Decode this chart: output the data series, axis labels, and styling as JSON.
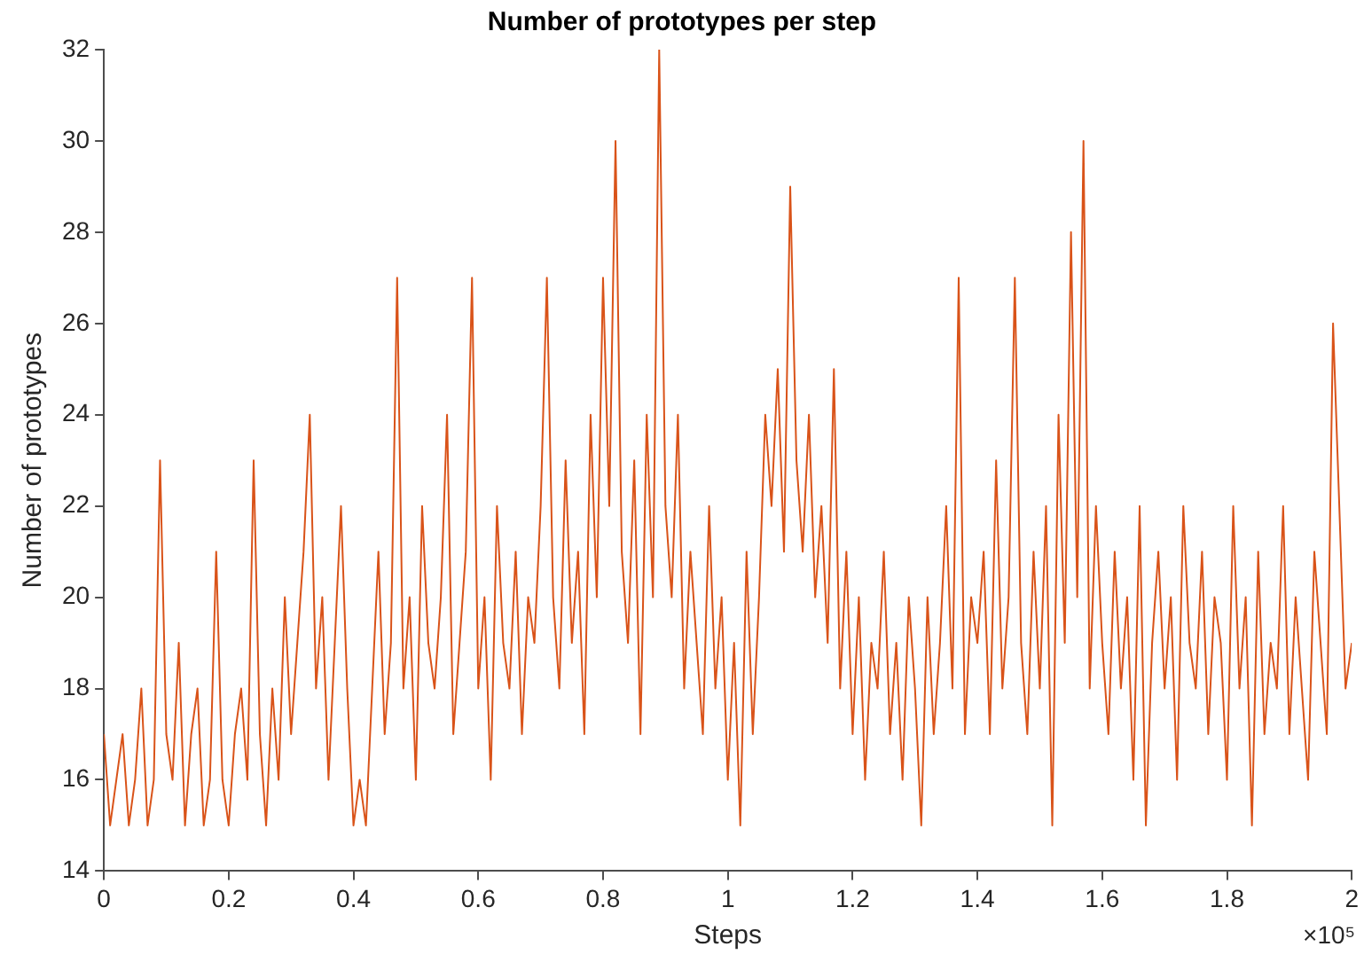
{
  "chart_data": {
    "type": "line",
    "title": "Number of prototypes per step",
    "xlabel": "Steps",
    "ylabel": "Number of prototypes",
    "annotations": [
      "×10⁵"
    ],
    "x": [
      0,
      0.01,
      0.02,
      0.03,
      0.04,
      0.05,
      0.06,
      0.07,
      0.08,
      0.09,
      0.1,
      0.11,
      0.12,
      0.13,
      0.14,
      0.15,
      0.16,
      0.17,
      0.18,
      0.19,
      0.2,
      0.21,
      0.22,
      0.23,
      0.24,
      0.25,
      0.26,
      0.27,
      0.28,
      0.29,
      0.3,
      0.31,
      0.32,
      0.33,
      0.34,
      0.35,
      0.36,
      0.37,
      0.38,
      0.39,
      0.4,
      0.41,
      0.42,
      0.43,
      0.44,
      0.45,
      0.46,
      0.47,
      0.48,
      0.49,
      0.5,
      0.51,
      0.52,
      0.53,
      0.54,
      0.55,
      0.56,
      0.57,
      0.58,
      0.59,
      0.6,
      0.61,
      0.62,
      0.63,
      0.64,
      0.65,
      0.66,
      0.67,
      0.68,
      0.69,
      0.7,
      0.71,
      0.72,
      0.73,
      0.74,
      0.75,
      0.76,
      0.77,
      0.78,
      0.79,
      0.8,
      0.81,
      0.82,
      0.83,
      0.84,
      0.85,
      0.86,
      0.87,
      0.88,
      0.89,
      0.9,
      0.91,
      0.92,
      0.93,
      0.94,
      0.95,
      0.96,
      0.97,
      0.98,
      0.99,
      1,
      1.01,
      1.02,
      1.03,
      1.04,
      1.05,
      1.06,
      1.07,
      1.08,
      1.09,
      1.1,
      1.11,
      1.12,
      1.13,
      1.14,
      1.15,
      1.16,
      1.17,
      1.18,
      1.19,
      1.2,
      1.21,
      1.22,
      1.23,
      1.24,
      1.25,
      1.26,
      1.27,
      1.28,
      1.29,
      1.3,
      1.31,
      1.32,
      1.33,
      1.34,
      1.35,
      1.36,
      1.37,
      1.38,
      1.39,
      1.4,
      1.41,
      1.42,
      1.43,
      1.44,
      1.45,
      1.46,
      1.47,
      1.48,
      1.49,
      1.5,
      1.51,
      1.52,
      1.53,
      1.54,
      1.55,
      1.56,
      1.57,
      1.58,
      1.59,
      1.6,
      1.61,
      1.62,
      1.63,
      1.64,
      1.65,
      1.66,
      1.67,
      1.68,
      1.69,
      1.7,
      1.71,
      1.72,
      1.73,
      1.74,
      1.75,
      1.76,
      1.77,
      1.78,
      1.79,
      1.8,
      1.81,
      1.82,
      1.83,
      1.84,
      1.85,
      1.86,
      1.87,
      1.88,
      1.89,
      1.9,
      1.91,
      1.92,
      1.93,
      1.94,
      1.95,
      1.96,
      1.97,
      1.98,
      1.99,
      2
    ],
    "series": [
      {
        "color": "#d95319",
        "values": [
          17,
          15,
          16,
          17,
          15,
          16,
          18,
          15,
          16,
          23,
          17,
          16,
          19,
          15,
          17,
          18,
          15,
          16,
          21,
          16,
          15,
          17,
          18,
          16,
          23,
          17,
          15,
          18,
          16,
          20,
          17,
          19,
          21,
          24,
          18,
          20,
          16,
          19,
          22,
          18,
          15,
          16,
          15,
          18,
          21,
          17,
          19,
          27,
          18,
          20,
          16,
          22,
          19,
          18,
          20,
          24,
          17,
          19,
          21,
          27,
          18,
          20,
          16,
          22,
          19,
          18,
          21,
          17,
          20,
          19,
          22,
          27,
          20,
          18,
          23,
          19,
          21,
          17,
          24,
          20,
          27,
          22,
          30,
          21,
          19,
          23,
          17,
          24,
          20,
          32,
          22,
          20,
          24,
          18,
          21,
          19,
          17,
          22,
          18,
          20,
          16,
          19,
          15,
          21,
          17,
          20,
          24,
          22,
          25,
          21,
          29,
          23,
          21,
          24,
          20,
          22,
          19,
          25,
          18,
          21,
          17,
          20,
          16,
          19,
          18,
          21,
          17,
          19,
          16,
          20,
          18,
          15,
          20,
          17,
          19,
          22,
          18,
          27,
          17,
          20,
          19,
          21,
          17,
          23,
          18,
          20,
          27,
          19,
          17,
          21,
          18,
          22,
          15,
          24,
          19,
          28,
          20,
          30,
          18,
          22,
          19,
          17,
          21,
          18,
          20,
          16,
          22,
          15,
          19,
          21,
          18,
          20,
          16,
          22,
          19,
          18,
          21,
          17,
          20,
          19,
          16,
          22,
          18,
          20,
          15,
          21,
          17,
          19,
          18,
          22,
          17,
          20,
          18,
          16,
          21,
          19,
          17,
          26,
          22,
          18,
          19
        ]
      }
    ],
    "xlim": [
      0,
      2
    ],
    "xticks": [
      0,
      0.2,
      0.4,
      0.6,
      0.8,
      1,
      1.2,
      1.4,
      1.6,
      1.8,
      2
    ],
    "ylim": [
      14,
      32
    ],
    "yticks": [
      14,
      16,
      18,
      20,
      22,
      24,
      26,
      28,
      30,
      32
    ],
    "grid": false,
    "legend": false,
    "marker": "none",
    "line_style": "solid"
  }
}
